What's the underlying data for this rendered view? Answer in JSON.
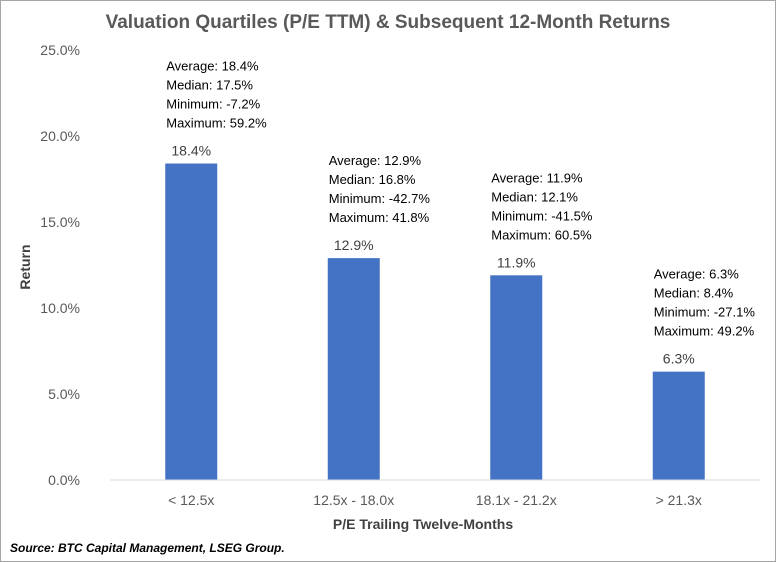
{
  "chart_data": {
    "type": "bar",
    "title": "Valuation Quartiles (P/E TTM) & Subsequent 12-Month Returns",
    "xlabel": "P/E Trailing Twelve-Months",
    "ylabel": "Return",
    "categories": [
      "< 12.5x",
      "12.5x - 18.0x",
      "18.1x - 21.2x",
      "> 21.3x"
    ],
    "values": [
      18.4,
      12.9,
      11.9,
      6.3
    ],
    "value_labels": [
      "18.4%",
      "12.9%",
      "11.9%",
      "6.3%"
    ],
    "ylim": [
      0,
      25
    ],
    "yticks": [
      0,
      5,
      10,
      15,
      20,
      25
    ],
    "ytick_labels": [
      "0.0%",
      "5.0%",
      "10.0%",
      "15.0%",
      "20.0%",
      "25.0%"
    ],
    "grid": false,
    "bar_color": "#4472c4",
    "annotations": [
      [
        "Average: 18.4%",
        "Median: 17.5%",
        "Minimum: -7.2%",
        "Maximum: 59.2%"
      ],
      [
        "Average: 12.9%",
        "Median: 16.8%",
        "Minimum: -42.7%",
        "Maximum: 41.8%"
      ],
      [
        "Average: 11.9%",
        "Median: 12.1%",
        "Minimum: -41.5%",
        "Maximum: 60.5%"
      ],
      [
        "Average: 6.3%",
        "Median: 8.4%",
        "Minimum: -27.1%",
        "Maximum: 49.2%"
      ]
    ]
  },
  "source": "Source: BTC Capital Management, LSEG Group."
}
